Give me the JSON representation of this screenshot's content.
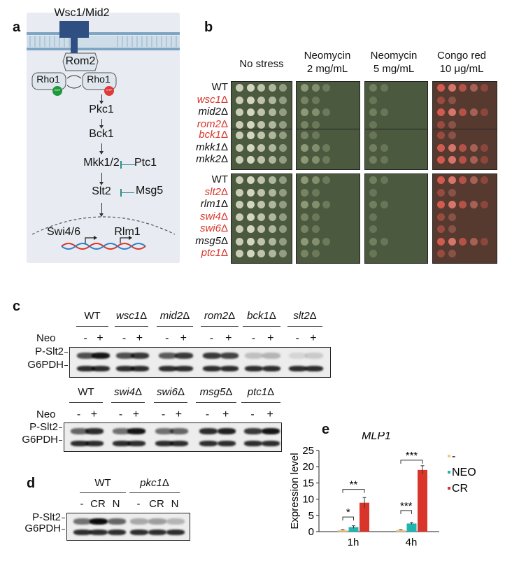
{
  "panels": {
    "a": "a",
    "b": "b",
    "c": "c",
    "d": "d",
    "e": "e"
  },
  "pathway": {
    "receptor": "Wsc1/Mid2",
    "gef": "Rom2",
    "rho_gdp": "Rho1",
    "rho_gtp": "Rho1",
    "gdp": "GDP",
    "gtp": "GTP",
    "kinases": [
      "Pkc1",
      "Bck1",
      "Mkk1/2",
      "Slt2"
    ],
    "ptc": "Ptc1",
    "msg": "Msg5",
    "tf1": "Swi4/6",
    "tf2": "Rlm1"
  },
  "spot_assay": {
    "conditions": [
      {
        "line1": "No stress",
        "line2": ""
      },
      {
        "line1": "Neomycin",
        "line2": "2 mg/mL"
      },
      {
        "line1": "Neomycin",
        "line2": "5 mg/mL"
      },
      {
        "line1": "Congo red",
        "line2": "10 μg/mL"
      }
    ],
    "groups": [
      [
        {
          "label": "WT",
          "hl": false
        },
        {
          "label": "wsc1Δ",
          "hl": true
        },
        {
          "label": "mid2Δ",
          "hl": false
        },
        {
          "label": "rom2Δ",
          "hl": true
        }
      ],
      [
        {
          "label": "bck1Δ",
          "hl": true
        },
        {
          "label": "mkk1Δ",
          "hl": false
        },
        {
          "label": "mkk2Δ",
          "hl": false
        }
      ],
      [
        {
          "label": "WT",
          "hl": false
        },
        {
          "label": "slt2Δ",
          "hl": true
        },
        {
          "label": "rlm1Δ",
          "hl": false
        },
        {
          "label": "swi4Δ",
          "hl": true
        },
        {
          "label": "swi6Δ",
          "hl": true
        },
        {
          "label": "msg5Δ",
          "hl": false
        },
        {
          "label": "ptc1Δ",
          "hl": true
        }
      ]
    ]
  },
  "blot_c_top": {
    "strains": [
      "WT",
      "wsc1Δ",
      "mid2Δ",
      "rom2Δ",
      "bck1Δ",
      "slt2Δ"
    ],
    "treatment": "Neo",
    "minus": "-",
    "plus": "+",
    "bands": [
      "P-Slt2",
      "G6PDH"
    ]
  },
  "blot_c_bottom": {
    "strains": [
      "WT",
      "swi4Δ",
      "swi6Δ",
      "msg5Δ",
      "ptc1Δ"
    ],
    "treatment": "Neo",
    "bands": [
      "P-Slt2",
      "G6PDH"
    ]
  },
  "blot_d": {
    "strains": [
      "WT",
      "pkc1Δ"
    ],
    "lanes": [
      "-",
      "CR",
      "N",
      "-",
      "CR",
      "N"
    ],
    "bands": [
      "P-Slt2",
      "G6PDH"
    ]
  },
  "chart_data": {
    "type": "bar",
    "title": "MLP1",
    "ylabel": "Expression level",
    "categories": [
      "1h",
      "4h"
    ],
    "ylim": [
      0,
      25
    ],
    "yticks": [
      0,
      5,
      10,
      15,
      20,
      25
    ],
    "series": [
      {
        "name": "-",
        "color": "#f2c98a",
        "values": [
          0.5,
          0.5
        ],
        "err": [
          0.1,
          0.1
        ]
      },
      {
        "name": "NEO",
        "color": "#1fb5b0",
        "values": [
          1.4,
          2.5
        ],
        "err": [
          0.4,
          0.3
        ]
      },
      {
        "name": "CR",
        "color": "#d9352a",
        "values": [
          8.9,
          19.0
        ],
        "err": [
          1.6,
          1.3
        ]
      }
    ],
    "significance": [
      {
        "group": "1h",
        "label": "*"
      },
      {
        "group": "1h",
        "label": "**"
      },
      {
        "group": "4h",
        "label": "***"
      },
      {
        "group": "4h",
        "label": "***"
      }
    ],
    "legend_position": "right"
  }
}
